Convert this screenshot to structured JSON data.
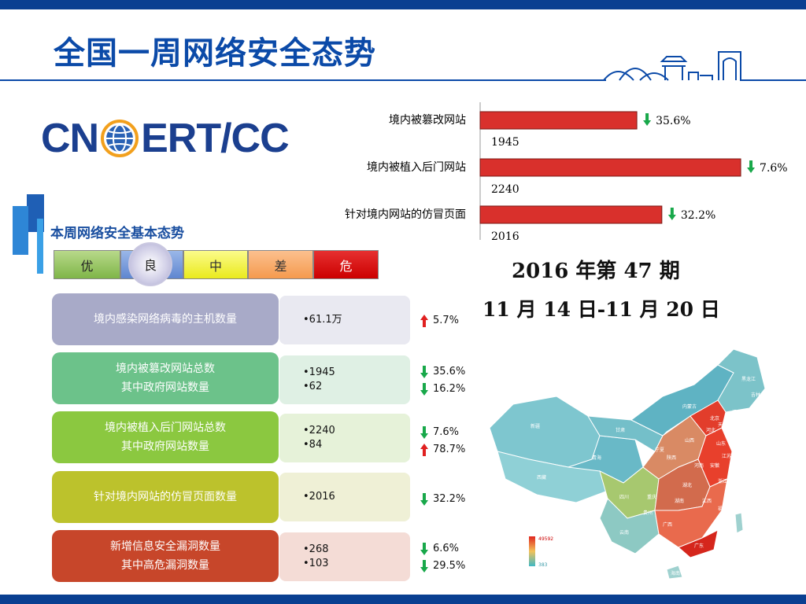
{
  "title": "全国一周网络安全态势",
  "logo": {
    "left": "CN",
    "right": "ERT/CC"
  },
  "subhead": "本周网络安全基本态势",
  "levels": [
    "优",
    "良",
    "中",
    "差",
    "危"
  ],
  "current_level": "良",
  "rows": [
    {
      "label1": "境内感染网络病毒的主机数量",
      "label2": "",
      "value1": "•61.1万",
      "value2": "",
      "change1": "5.7%",
      "dir1": "up",
      "change2": "",
      "dir2": "",
      "color": "#a8aac8",
      "valbg": "#e9e9f1"
    },
    {
      "label1": "境内被篡改网站总数",
      "label2": "其中政府网站数量",
      "value1": "•1945",
      "value2": "•62",
      "change1": "35.6%",
      "dir1": "down",
      "change2": "16.2%",
      "dir2": "down",
      "color": "#6cc28a",
      "valbg": "#dff0e4"
    },
    {
      "label1": "境内被植入后门网站总数",
      "label2": "其中政府网站数量",
      "value1": "•2240",
      "value2": "•84",
      "change1": "7.6%",
      "dir1": "down",
      "change2": "78.7%",
      "dir2": "up",
      "color": "#8bc840",
      "valbg": "#e6f2d9"
    },
    {
      "label1": "针对境内网站的仿冒页面数量",
      "label2": "",
      "value1": "•2016",
      "value2": "",
      "change1": "32.2%",
      "dir1": "down",
      "change2": "",
      "dir2": "",
      "color": "#bcc22c",
      "valbg": "#eff0d6"
    },
    {
      "label1": "新增信息安全漏洞数量",
      "label2": "其中高危漏洞数量",
      "value1": "•268",
      "value2": "•103",
      "change1": "6.6%",
      "dir1": "down",
      "change2": "29.5%",
      "dir2": "down",
      "color": "#c7462a",
      "valbg": "#f4dcd6"
    }
  ],
  "chart_data": {
    "type": "bar",
    "orientation": "horizontal",
    "categories": [
      "境内被篡改网站",
      "境内被植入后门网站",
      "针对境内网站的仿冒页面"
    ],
    "values": [
      1945,
      2240,
      2016
    ],
    "changes": [
      "35.6%",
      "7.6%",
      "32.2%"
    ],
    "change_dirs": [
      "down",
      "down",
      "down"
    ],
    "bar_color": "#d9302c",
    "xlim": [
      1500,
      2260
    ]
  },
  "period": "2016 年第 47 期",
  "dates": "11 月 14 日-11 月 20 日",
  "map": {
    "legend_max": "49592",
    "legend_min": "383",
    "provinces": [
      "新疆",
      "西藏",
      "青海",
      "甘肃",
      "内蒙古",
      "黑龙江",
      "吉林",
      "辽宁",
      "北京",
      "天津",
      "河北",
      "山西",
      "山东",
      "宁夏",
      "陕西",
      "河南",
      "江苏",
      "安徽",
      "上海",
      "浙江",
      "四川",
      "重庆",
      "湖北",
      "湖南",
      "江西",
      "福建",
      "云南",
      "贵州",
      "广西",
      "广东",
      "海南",
      "台湾"
    ]
  },
  "colors": {
    "up": "#e02020",
    "down": "#18a84a",
    "title": "#0b4aa8",
    "frame": "#0a3f91"
  }
}
